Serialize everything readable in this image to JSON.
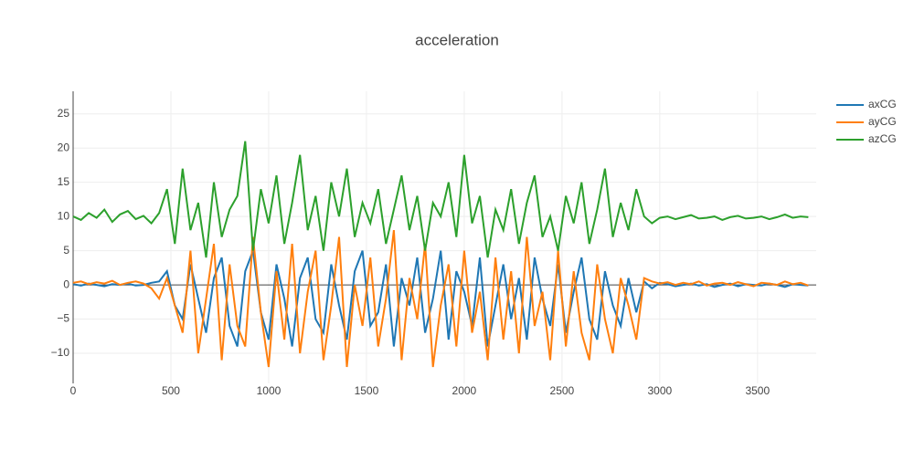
{
  "chart_data": {
    "type": "line",
    "title": "acceleration",
    "x": [
      0,
      40,
      80,
      120,
      160,
      200,
      240,
      280,
      320,
      360,
      400,
      440,
      480,
      520,
      560,
      600,
      640,
      680,
      720,
      760,
      800,
      840,
      880,
      920,
      960,
      1000,
      1040,
      1080,
      1120,
      1160,
      1200,
      1240,
      1280,
      1320,
      1360,
      1400,
      1440,
      1480,
      1520,
      1560,
      1600,
      1640,
      1680,
      1720,
      1760,
      1800,
      1840,
      1880,
      1920,
      1960,
      2000,
      2040,
      2080,
      2120,
      2160,
      2200,
      2240,
      2280,
      2320,
      2360,
      2400,
      2440,
      2480,
      2520,
      2560,
      2600,
      2640,
      2680,
      2720,
      2760,
      2800,
      2840,
      2880,
      2920,
      2960,
      3000,
      3040,
      3080,
      3120,
      3160,
      3200,
      3240,
      3280,
      3320,
      3360,
      3400,
      3440,
      3480,
      3520,
      3560,
      3600,
      3640,
      3680,
      3720,
      3760
    ],
    "series": [
      {
        "name": "axCG",
        "color": "#1f77b4",
        "values": [
          0.1,
          -0.1,
          0.2,
          0,
          -0.2,
          0.1,
          0,
          0.2,
          -0.1,
          0,
          0.3,
          0.5,
          2,
          -3,
          -5,
          3,
          -2,
          -7,
          1,
          4,
          -6,
          -9,
          2,
          5,
          -4,
          -8,
          3,
          -2,
          -9,
          1,
          4,
          -5,
          -7,
          3,
          -3,
          -8,
          2,
          5,
          -6,
          -4,
          3,
          -9,
          1,
          -3,
          4,
          -7,
          -2,
          5,
          -8,
          2,
          -1,
          -6,
          4,
          -9,
          -3,
          3,
          -5,
          1,
          -8,
          4,
          -2,
          -6,
          3,
          -7,
          -1,
          4,
          -5,
          -8,
          2,
          -3,
          -6,
          1,
          -4,
          0.5,
          -0.5,
          0.3,
          0.1,
          -0.2,
          0,
          0.2,
          -0.1,
          0.1,
          -0.3,
          0,
          0.2,
          -0.2,
          0.1,
          0,
          -0.1,
          0.2,
          0,
          -0.3,
          0.1,
          0,
          -0.1
        ]
      },
      {
        "name": "ayCG",
        "color": "#ff7f0e",
        "values": [
          0.3,
          0.5,
          0.1,
          0.4,
          0.2,
          0.6,
          0,
          0.3,
          0.5,
          0.2,
          -0.5,
          -2,
          1,
          -3,
          -7,
          5,
          -10,
          -2,
          6,
          -11,
          3,
          -6,
          -9,
          7,
          -4,
          -12,
          2,
          -8,
          6,
          -10,
          -1,
          5,
          -11,
          -3,
          7,
          -12,
          0,
          -6,
          4,
          -9,
          -2,
          8,
          -11,
          1,
          -5,
          6,
          -12,
          -3,
          3,
          -9,
          5,
          -7,
          -1,
          -11,
          4,
          -8,
          2,
          -10,
          7,
          -6,
          -1,
          -11,
          5,
          -9,
          2,
          -7,
          -11,
          3,
          -5,
          -10,
          1,
          -3,
          -8,
          1,
          0.5,
          0.2,
          0.4,
          0,
          0.3,
          0.1,
          0.5,
          -0.1,
          0.2,
          0.3,
          0,
          0.4,
          0.1,
          -0.2,
          0.3,
          0.2,
          0,
          0.5,
          0.1,
          0.3,
          -0.1
        ]
      },
      {
        "name": "azCG",
        "color": "#2ca02c",
        "values": [
          10,
          9.5,
          10.5,
          9.8,
          11,
          9.2,
          10.3,
          10.8,
          9.6,
          10.1,
          9,
          10.5,
          14,
          6,
          17,
          8,
          12,
          4,
          15,
          7,
          11,
          13,
          21,
          5,
          14,
          9,
          16,
          6,
          12,
          19,
          8,
          13,
          5,
          15,
          10,
          17,
          7,
          12,
          9,
          14,
          6,
          11,
          16,
          8,
          13,
          5,
          12,
          10,
          15,
          7,
          19,
          9,
          13,
          4,
          11,
          8,
          14,
          6,
          12,
          16,
          7,
          10,
          5,
          13,
          9,
          15,
          6,
          11,
          17,
          7,
          12,
          8,
          14,
          10,
          9,
          9.8,
          10,
          9.6,
          9.9,
          10.2,
          9.7,
          9.8,
          10,
          9.5,
          9.9,
          10.1,
          9.7,
          9.8,
          10,
          9.6,
          9.9,
          10.3,
          9.8,
          10,
          9.9
        ]
      }
    ],
    "xlim": [
      0,
      3800
    ],
    "ylim": [
      -14.4,
      28.3
    ],
    "xticks": [
      0,
      500,
      1000,
      1500,
      2000,
      2500,
      3000,
      3500
    ],
    "yticks": [
      {
        "value": -10,
        "label": "−10"
      },
      {
        "value": -5,
        "label": "−5"
      },
      0,
      5,
      10,
      15,
      20,
      25
    ],
    "grid": true,
    "legend": "top-right"
  }
}
